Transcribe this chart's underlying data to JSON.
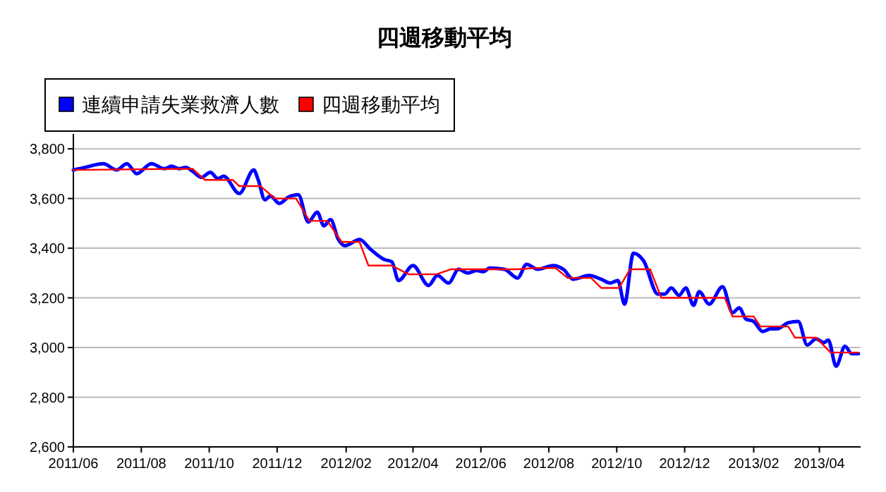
{
  "chart_data": {
    "type": "line",
    "title": "四週移動平均",
    "legend": "top left",
    "grid": "y",
    "marker": "none",
    "xlim": [
      "2011-06-01",
      "2013-05-08"
    ],
    "ylim": [
      2600,
      3860
    ],
    "xticks": [
      {
        "value": "2011-06-01",
        "label": "2011/06"
      },
      {
        "value": "2011-08-01",
        "label": "2011/08"
      },
      {
        "value": "2011-10-01",
        "label": "2011/10"
      },
      {
        "value": "2011-12-01",
        "label": "2011/12"
      },
      {
        "value": "2012-02-01",
        "label": "2012/02"
      },
      {
        "value": "2012-04-01",
        "label": "2012/04"
      },
      {
        "value": "2012-06-01",
        "label": "2012/06"
      },
      {
        "value": "2012-08-01",
        "label": "2012/08"
      },
      {
        "value": "2012-10-01",
        "label": "2012/10"
      },
      {
        "value": "2012-12-01",
        "label": "2012/12"
      },
      {
        "value": "2013-02-01",
        "label": "2013/02"
      },
      {
        "value": "2013-04-01",
        "label": "2013/04"
      }
    ],
    "yticks": [
      {
        "value": 2600,
        "label": "2,600"
      },
      {
        "value": 2800,
        "label": "2,800"
      },
      {
        "value": 3000,
        "label": "3,000"
      },
      {
        "value": 3200,
        "label": "3,200"
      },
      {
        "value": 3400,
        "label": "3,400"
      },
      {
        "value": 3600,
        "label": "3,600"
      },
      {
        "value": 3800,
        "label": "3,800"
      }
    ],
    "series": [
      {
        "name": "連續申請失業救濟人數",
        "color": "#0000ff",
        "line_style": "solid",
        "x": [
          "2011-06-01",
          "2011-06-11",
          "2011-06-28",
          "2011-07-10",
          "2011-07-19",
          "2011-07-28",
          "2011-08-10",
          "2011-08-22",
          "2011-08-28",
          "2011-09-04",
          "2011-09-10",
          "2011-09-16",
          "2011-09-24",
          "2011-10-02",
          "2011-10-09",
          "2011-10-14",
          "2011-10-28",
          "2011-11-10",
          "2011-11-14",
          "2011-11-20",
          "2011-11-25",
          "2011-12-03",
          "2011-12-11",
          "2011-12-20",
          "2011-12-29",
          "2012-01-06",
          "2012-01-12",
          "2012-01-18",
          "2012-01-25",
          "2012-01-31",
          "2012-02-13",
          "2012-02-23",
          "2012-03-06",
          "2012-03-13",
          "2012-03-19",
          "2012-04-01",
          "2012-04-15",
          "2012-04-23",
          "2012-05-03",
          "2012-05-12",
          "2012-05-20",
          "2012-05-28",
          "2012-06-03",
          "2012-06-09",
          "2012-06-22",
          "2012-07-04",
          "2012-07-12",
          "2012-07-22",
          "2012-08-05",
          "2012-08-14",
          "2012-08-23",
          "2012-09-06",
          "2012-09-17",
          "2012-09-25",
          "2012-10-02",
          "2012-10-08",
          "2012-10-16",
          "2012-10-25",
          "2012-11-07",
          "2012-11-13",
          "2012-11-19",
          "2012-11-26",
          "2012-12-02",
          "2012-12-09",
          "2012-12-14",
          "2012-12-23",
          "2013-01-04",
          "2013-01-13",
          "2013-01-19",
          "2013-01-25",
          "2013-02-01",
          "2013-02-09",
          "2013-02-16",
          "2013-02-22",
          "2013-03-04",
          "2013-03-13",
          "2013-03-21",
          "2013-03-29",
          "2013-04-05",
          "2013-04-09",
          "2013-04-16",
          "2013-04-24",
          "2013-04-30",
          "2013-05-06"
        ],
        "values": [
          3715,
          3725,
          3740,
          3715,
          3740,
          3700,
          3740,
          3720,
          3730,
          3720,
          3725,
          3710,
          3685,
          3705,
          3680,
          3690,
          3620,
          3715,
          3675,
          3595,
          3610,
          3580,
          3605,
          3615,
          3505,
          3545,
          3490,
          3515,
          3435,
          3410,
          3435,
          3395,
          3355,
          3345,
          3270,
          3330,
          3250,
          3290,
          3260,
          3315,
          3300,
          3310,
          3305,
          3320,
          3315,
          3280,
          3335,
          3315,
          3330,
          3315,
          3275,
          3290,
          3275,
          3260,
          3270,
          3175,
          3380,
          3350,
          3215,
          3215,
          3240,
          3210,
          3240,
          3170,
          3225,
          3175,
          3245,
          3140,
          3160,
          3115,
          3105,
          3065,
          3075,
          3075,
          3100,
          3105,
          3010,
          3035,
          3020,
          3030,
          2925,
          3005,
          2975,
          2975
        ]
      },
      {
        "name": "四週移動平均",
        "color": "#ff0000",
        "line_style": "solid",
        "x": [
          "2011-06-01",
          "2011-09-16",
          "2011-09-27",
          "2011-10-22",
          "2011-10-28",
          "2011-11-16",
          "2011-11-29",
          "2011-12-18",
          "2011-12-30",
          "2012-01-15",
          "2012-01-28",
          "2012-02-13",
          "2012-02-21",
          "2012-03-13",
          "2012-03-28",
          "2012-04-22",
          "2012-05-05",
          "2012-07-04",
          "2012-07-19",
          "2012-08-07",
          "2012-08-18",
          "2012-09-08",
          "2012-09-17",
          "2012-10-03",
          "2012-10-13",
          "2012-10-31",
          "2012-11-10",
          "2013-01-06",
          "2013-01-13",
          "2013-02-01",
          "2013-02-07",
          "2013-03-04",
          "2013-03-10",
          "2013-03-29",
          "2013-04-11",
          "2013-05-06"
        ],
        "values": [
          3715,
          3720,
          3675,
          3675,
          3650,
          3650,
          3600,
          3600,
          3510,
          3510,
          3425,
          3425,
          3330,
          3330,
          3295,
          3295,
          3315,
          3315,
          3320,
          3320,
          3280,
          3280,
          3240,
          3240,
          3315,
          3315,
          3200,
          3200,
          3125,
          3125,
          3085,
          3085,
          3040,
          3040,
          2980,
          2980
        ]
      }
    ]
  }
}
